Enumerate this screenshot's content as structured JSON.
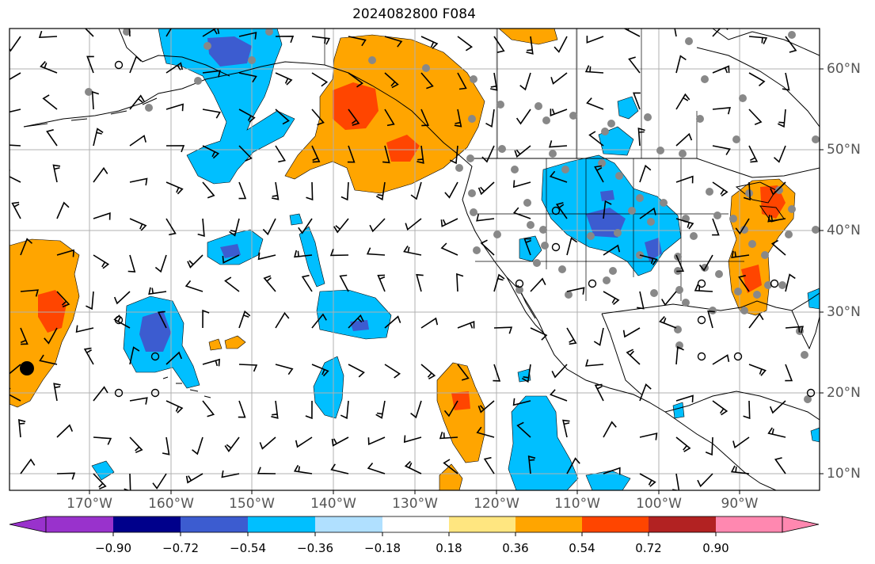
{
  "title": "2024082800 F084",
  "map": {
    "lon_labels": [
      "170°W",
      "160°W",
      "150°W",
      "140°W",
      "130°W",
      "120°W",
      "110°W",
      "100°W",
      "90°W"
    ],
    "lat_labels": [
      "60°N",
      "50°N",
      "40°N",
      "30°N",
      "20°N",
      "10°N"
    ],
    "grid": true
  },
  "colorbar": {
    "labels": [
      "−0.90",
      "−0.72",
      "−0.54",
      "−0.36",
      "−0.18",
      "0.18",
      "0.36",
      "0.54",
      "0.72",
      "0.90"
    ],
    "colors": [
      "#9932cc",
      "#00008b",
      "#3c5cd0",
      "#00bfff",
      "#b0e0ff",
      "#ffffff",
      "#ffe680",
      "#ffa500",
      "#ff4500",
      "#b22222",
      "#ff88b0"
    ]
  },
  "palette": {
    "positive_light": "#ffa500",
    "positive_strong": "#ff4500",
    "negative_light": "#00bfff",
    "negative_strong": "#3c5cd0",
    "station": "#888888"
  }
}
